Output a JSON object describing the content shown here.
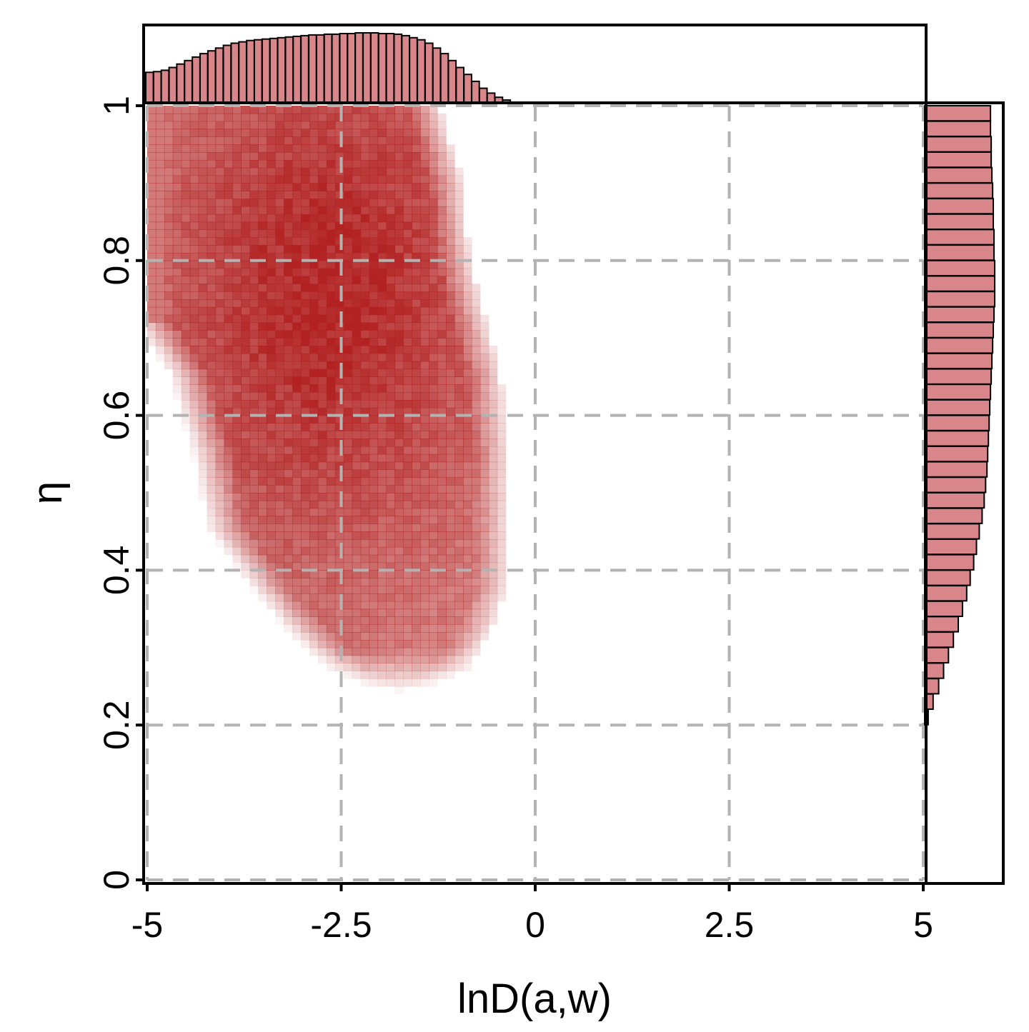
{
  "chart_data": {
    "type": "heatmap",
    "title": "",
    "xlabel": "lnD(a,w)",
    "ylabel": "η",
    "xlim": [
      -5,
      5
    ],
    "ylim": [
      0,
      1
    ],
    "x_ticks": [
      -5,
      -2.5,
      0,
      2.5,
      5
    ],
    "x_tick_labels": [
      "-5",
      "-2.5",
      "0",
      "2.5",
      "5"
    ],
    "y_ticks": [
      0,
      0.2,
      0.4,
      0.6,
      0.8,
      1
    ],
    "y_tick_labels": [
      "0",
      "0.2",
      "0.4",
      "0.6",
      "0.8",
      "1"
    ],
    "grid": "dashed",
    "colors": {
      "density": "#b22222",
      "histogram_fill": "#d9868a",
      "histogram_stroke": "#000000",
      "grid": "#b3b3b3"
    },
    "density_region": {
      "description_points_eta_vs_x_range": [
        {
          "eta": 1.0,
          "x_min": -5.0,
          "x_max": -1.4
        },
        {
          "eta": 0.9,
          "x_min": -5.0,
          "x_max": -1.1
        },
        {
          "eta": 0.8,
          "x_min": -5.0,
          "x_max": -1.0
        },
        {
          "eta": 0.72,
          "x_min": -5.0,
          "x_max": -0.8
        },
        {
          "eta": 0.65,
          "x_min": -4.5,
          "x_max": -0.6
        },
        {
          "eta": 0.55,
          "x_min": -4.2,
          "x_max": -0.5
        },
        {
          "eta": 0.45,
          "x_min": -4.0,
          "x_max": -0.5
        },
        {
          "eta": 0.38,
          "x_min": -3.5,
          "x_max": -0.5
        },
        {
          "eta": 0.32,
          "x_min": -3.0,
          "x_max": -0.7
        },
        {
          "eta": 0.27,
          "x_min": -2.5,
          "x_max": -1.0
        },
        {
          "eta": 0.24,
          "x_min": -2.0,
          "x_max": -1.5
        }
      ],
      "peak": {
        "x": -2.7,
        "eta": 0.75
      }
    },
    "top_histogram": {
      "x": [
        -5.0,
        -4.9,
        -4.8,
        -4.7,
        -4.6,
        -4.5,
        -4.4,
        -4.3,
        -4.2,
        -4.1,
        -4.0,
        -3.9,
        -3.8,
        -3.7,
        -3.6,
        -3.5,
        -3.4,
        -3.3,
        -3.2,
        -3.1,
        -3.0,
        -2.9,
        -2.8,
        -2.7,
        -2.6,
        -2.5,
        -2.4,
        -2.3,
        -2.2,
        -2.1,
        -2.0,
        -1.9,
        -1.8,
        -1.7,
        -1.6,
        -1.5,
        -1.4,
        -1.3,
        -1.2,
        -1.1,
        -1.0,
        -0.9,
        -0.8,
        -0.7,
        -0.6,
        -0.5,
        -0.4
      ],
      "counts": [
        0.43,
        0.44,
        0.46,
        0.5,
        0.55,
        0.6,
        0.65,
        0.7,
        0.74,
        0.78,
        0.82,
        0.85,
        0.87,
        0.89,
        0.9,
        0.91,
        0.92,
        0.93,
        0.94,
        0.95,
        0.96,
        0.97,
        0.97,
        0.98,
        0.98,
        0.99,
        0.99,
        1.0,
        1.0,
        1.0,
        0.99,
        0.99,
        0.98,
        0.96,
        0.93,
        0.9,
        0.85,
        0.78,
        0.7,
        0.6,
        0.5,
        0.4,
        0.3,
        0.2,
        0.13,
        0.07,
        0.03
      ]
    },
    "right_histogram": {
      "eta": [
        0.22,
        0.24,
        0.26,
        0.28,
        0.3,
        0.32,
        0.34,
        0.36,
        0.38,
        0.4,
        0.42,
        0.44,
        0.46,
        0.48,
        0.5,
        0.52,
        0.54,
        0.56,
        0.58,
        0.6,
        0.62,
        0.64,
        0.66,
        0.68,
        0.7,
        0.72,
        0.74,
        0.76,
        0.78,
        0.8,
        0.82,
        0.84,
        0.86,
        0.88,
        0.9,
        0.92,
        0.94,
        0.96,
        0.98,
        1.0
      ],
      "counts": [
        0.05,
        0.12,
        0.2,
        0.27,
        0.34,
        0.41,
        0.48,
        0.54,
        0.6,
        0.65,
        0.7,
        0.74,
        0.78,
        0.82,
        0.85,
        0.87,
        0.89,
        0.9,
        0.91,
        0.92,
        0.93,
        0.94,
        0.95,
        0.96,
        0.97,
        0.98,
        0.99,
        1.0,
        1.0,
        1.0,
        0.99,
        0.99,
        0.98,
        0.98,
        0.97,
        0.96,
        0.95,
        0.95,
        0.94,
        0.94
      ]
    }
  }
}
